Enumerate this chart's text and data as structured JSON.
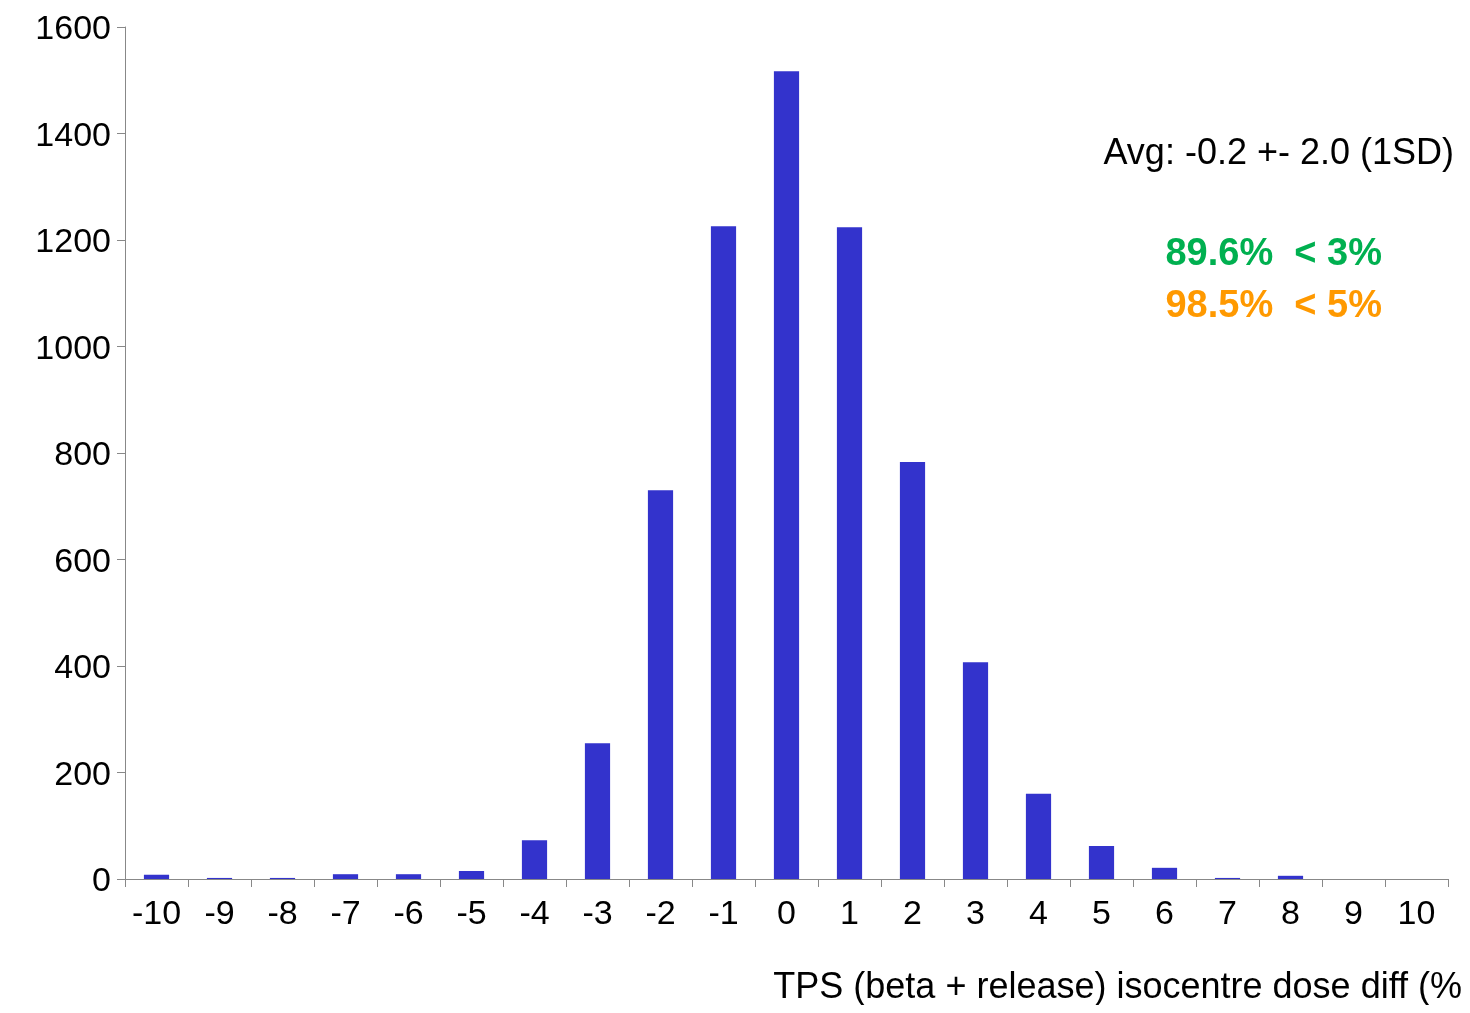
{
  "chart_data": {
    "type": "bar",
    "xlabel": "TPS (beta + release) isocentre dose diff (%",
    "categories": [
      "-10",
      "-9",
      "-8",
      "-7",
      "-6",
      "-5",
      "-4",
      "-3",
      "-2",
      "-1",
      "0",
      "1",
      "2",
      "3",
      "4",
      "5",
      "6",
      "7",
      "8",
      "9",
      "10"
    ],
    "values": [
      8,
      2,
      2,
      9,
      9,
      15,
      73,
      255,
      730,
      1226,
      1517,
      1224,
      783,
      407,
      160,
      62,
      21,
      2,
      6,
      0,
      0
    ],
    "color": "#3333cc",
    "ylim": [
      0,
      1600
    ],
    "yticks": [
      0,
      200,
      400,
      600,
      800,
      1000,
      1200,
      1400,
      1600
    ],
    "grid": false,
    "annotations": [
      "Avg: -0.2 +- 2.0 (1SD)",
      "89.6%  < 3%",
      "98.5%  < 5%"
    ]
  }
}
